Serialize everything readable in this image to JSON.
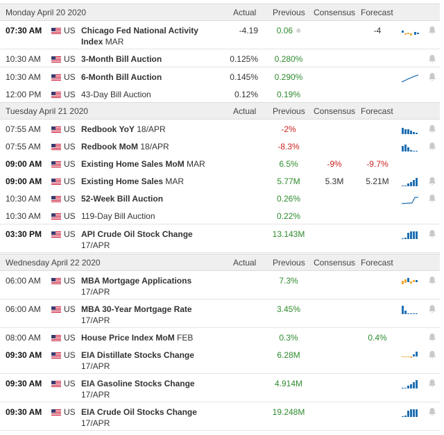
{
  "headers": {
    "actual": "Actual",
    "previous": "Previous",
    "consensus": "Consensus",
    "forecast": "Forecast"
  },
  "colors": {
    "header_bg": "#efefef",
    "positive": "#2e8b2e",
    "negative": "#cc2222",
    "spark_blue": "#1f6fb2",
    "spark_orange": "#f0a830"
  },
  "days": [
    {
      "label": "Monday April 20 2020",
      "events": [
        {
          "time": "07:30 AM",
          "bold": true,
          "country": "US",
          "name": "Chicago Fed National Activity Index",
          "period": "MAR",
          "actual": "-4.19",
          "previous": "0.06",
          "previous_revised": true,
          "previous_color": "green",
          "consensus": "",
          "forecast": "-4",
          "forecast_color": "dark",
          "spark": "mixed-small",
          "bell": "bell-icon"
        },
        {
          "time": "10:30 AM",
          "bold": false,
          "country": "US",
          "name": "3-Month Bill Auction",
          "period": "",
          "actual": "0.125%",
          "previous": "0.280%",
          "previous_color": "green",
          "consensus": "",
          "forecast": "",
          "spark": "",
          "bell": "bell-icon"
        },
        {
          "time": "10:30 AM",
          "bold": false,
          "country": "US",
          "name": "6-Month Bill Auction",
          "period": "",
          "actual": "0.145%",
          "previous": "0.290%",
          "previous_color": "green",
          "consensus": "",
          "forecast": "",
          "spark": "line-up",
          "bell": "bell-icon"
        },
        {
          "time": "12:00 PM",
          "bold": false,
          "country": "US",
          "name": "43-Day Bill Auction",
          "period": "",
          "name_plain": true,
          "actual": "0.12%",
          "previous": "0.19%",
          "previous_color": "green",
          "consensus": "",
          "forecast": "",
          "spark": "",
          "bell": ""
        }
      ]
    },
    {
      "label": "Tuesday April 21 2020",
      "events": [
        {
          "time": "07:55 AM",
          "bold": false,
          "country": "US",
          "name": "Redbook YoY",
          "period": "18/APR",
          "actual": "",
          "previous": "-2%",
          "previous_color": "red",
          "consensus": "",
          "forecast": "",
          "spark": "bars-down",
          "bell": "bell-icon"
        },
        {
          "time": "07:55 AM",
          "bold": false,
          "country": "US",
          "name": "Redbook MoM",
          "period": "18/APR",
          "actual": "",
          "previous": "-8.3%",
          "previous_color": "red",
          "consensus": "",
          "forecast": "",
          "spark": "bars-mixed",
          "bell": "bell-icon"
        },
        {
          "time": "09:00 AM",
          "bold": true,
          "country": "US",
          "name": "Existing Home Sales MoM",
          "period": "MAR",
          "actual": "",
          "previous": "6.5%",
          "previous_color": "green",
          "consensus": "-9%",
          "consensus_color": "red",
          "forecast": "-9.7%",
          "forecast_color": "red",
          "spark": "",
          "bell": ""
        },
        {
          "time": "09:00 AM",
          "bold": true,
          "country": "US",
          "name": "Existing Home Sales",
          "period": "MAR",
          "actual": "",
          "previous": "5.77M",
          "previous_color": "green",
          "consensus": "5.3M",
          "consensus_color": "dark",
          "forecast": "5.21M",
          "forecast_color": "dark",
          "spark": "bars-up",
          "bell": "bell-icon"
        },
        {
          "time": "10:30 AM",
          "bold": false,
          "country": "US",
          "name": "52-Week Bill Auction",
          "period": "",
          "actual": "",
          "previous": "0.26%",
          "previous_color": "green",
          "consensus": "",
          "forecast": "",
          "spark": "line-step",
          "bell": "bell-icon"
        },
        {
          "time": "10:30 AM",
          "bold": false,
          "country": "US",
          "name": "119-Day Bill Auction",
          "period": "",
          "name_plain": true,
          "actual": "",
          "previous": "0.22%",
          "previous_color": "green",
          "consensus": "",
          "forecast": "",
          "spark": "",
          "bell": ""
        },
        {
          "time": "03:30 PM",
          "bold": true,
          "country": "US",
          "name": "API Crude Oil Stock Change",
          "period": "17/APR",
          "actual": "",
          "previous": "13.143M",
          "previous_color": "green",
          "consensus": "",
          "forecast": "",
          "spark": "bars-tall",
          "bell": "bell-icon"
        }
      ]
    },
    {
      "label": "Wednesday April 22 2020",
      "events": [
        {
          "time": "06:00 AM",
          "bold": false,
          "country": "US",
          "name": "MBA Mortgage Applications",
          "period": "17/APR",
          "actual": "",
          "previous": "7.3%",
          "previous_color": "green",
          "consensus": "",
          "forecast": "",
          "spark": "mixed-orange",
          "bell": "bell-icon"
        },
        {
          "time": "06:00 AM",
          "bold": false,
          "country": "US",
          "name": "MBA 30-Year Mortgage Rate",
          "period": "17/APR",
          "actual": "",
          "previous": "3.45%",
          "previous_color": "green",
          "consensus": "",
          "forecast": "",
          "spark": "bars-left",
          "bell": "bell-icon"
        },
        {
          "time": "08:00 AM",
          "bold": false,
          "country": "US",
          "name": "House Price Index MoM",
          "period": "FEB",
          "actual": "",
          "previous": "0.3%",
          "previous_color": "green",
          "consensus": "",
          "forecast": "0.4%",
          "forecast_color": "green",
          "spark": "",
          "bell": "bell-icon"
        },
        {
          "time": "09:30 AM",
          "bold": true,
          "country": "US",
          "name": "EIA Distillate Stocks Change",
          "period": "17/APR",
          "actual": "",
          "previous": "6.28M",
          "previous_color": "green",
          "consensus": "",
          "forecast": "",
          "spark": "mixed-right",
          "bell": "bell-icon"
        },
        {
          "time": "09:30 AM",
          "bold": true,
          "country": "US",
          "name": "EIA Gasoline Stocks Change",
          "period": "17/APR",
          "actual": "",
          "previous": "4.914M",
          "previous_color": "green",
          "consensus": "",
          "forecast": "",
          "spark": "bars-up",
          "bell": "bell-icon"
        },
        {
          "time": "09:30 AM",
          "bold": true,
          "country": "US",
          "name": "EIA Crude Oil Stocks Change",
          "period": "17/APR",
          "actual": "",
          "previous": "19.248M",
          "previous_color": "green",
          "consensus": "",
          "forecast": "",
          "spark": "bars-tall",
          "bell": "bell-icon"
        }
      ]
    }
  ]
}
